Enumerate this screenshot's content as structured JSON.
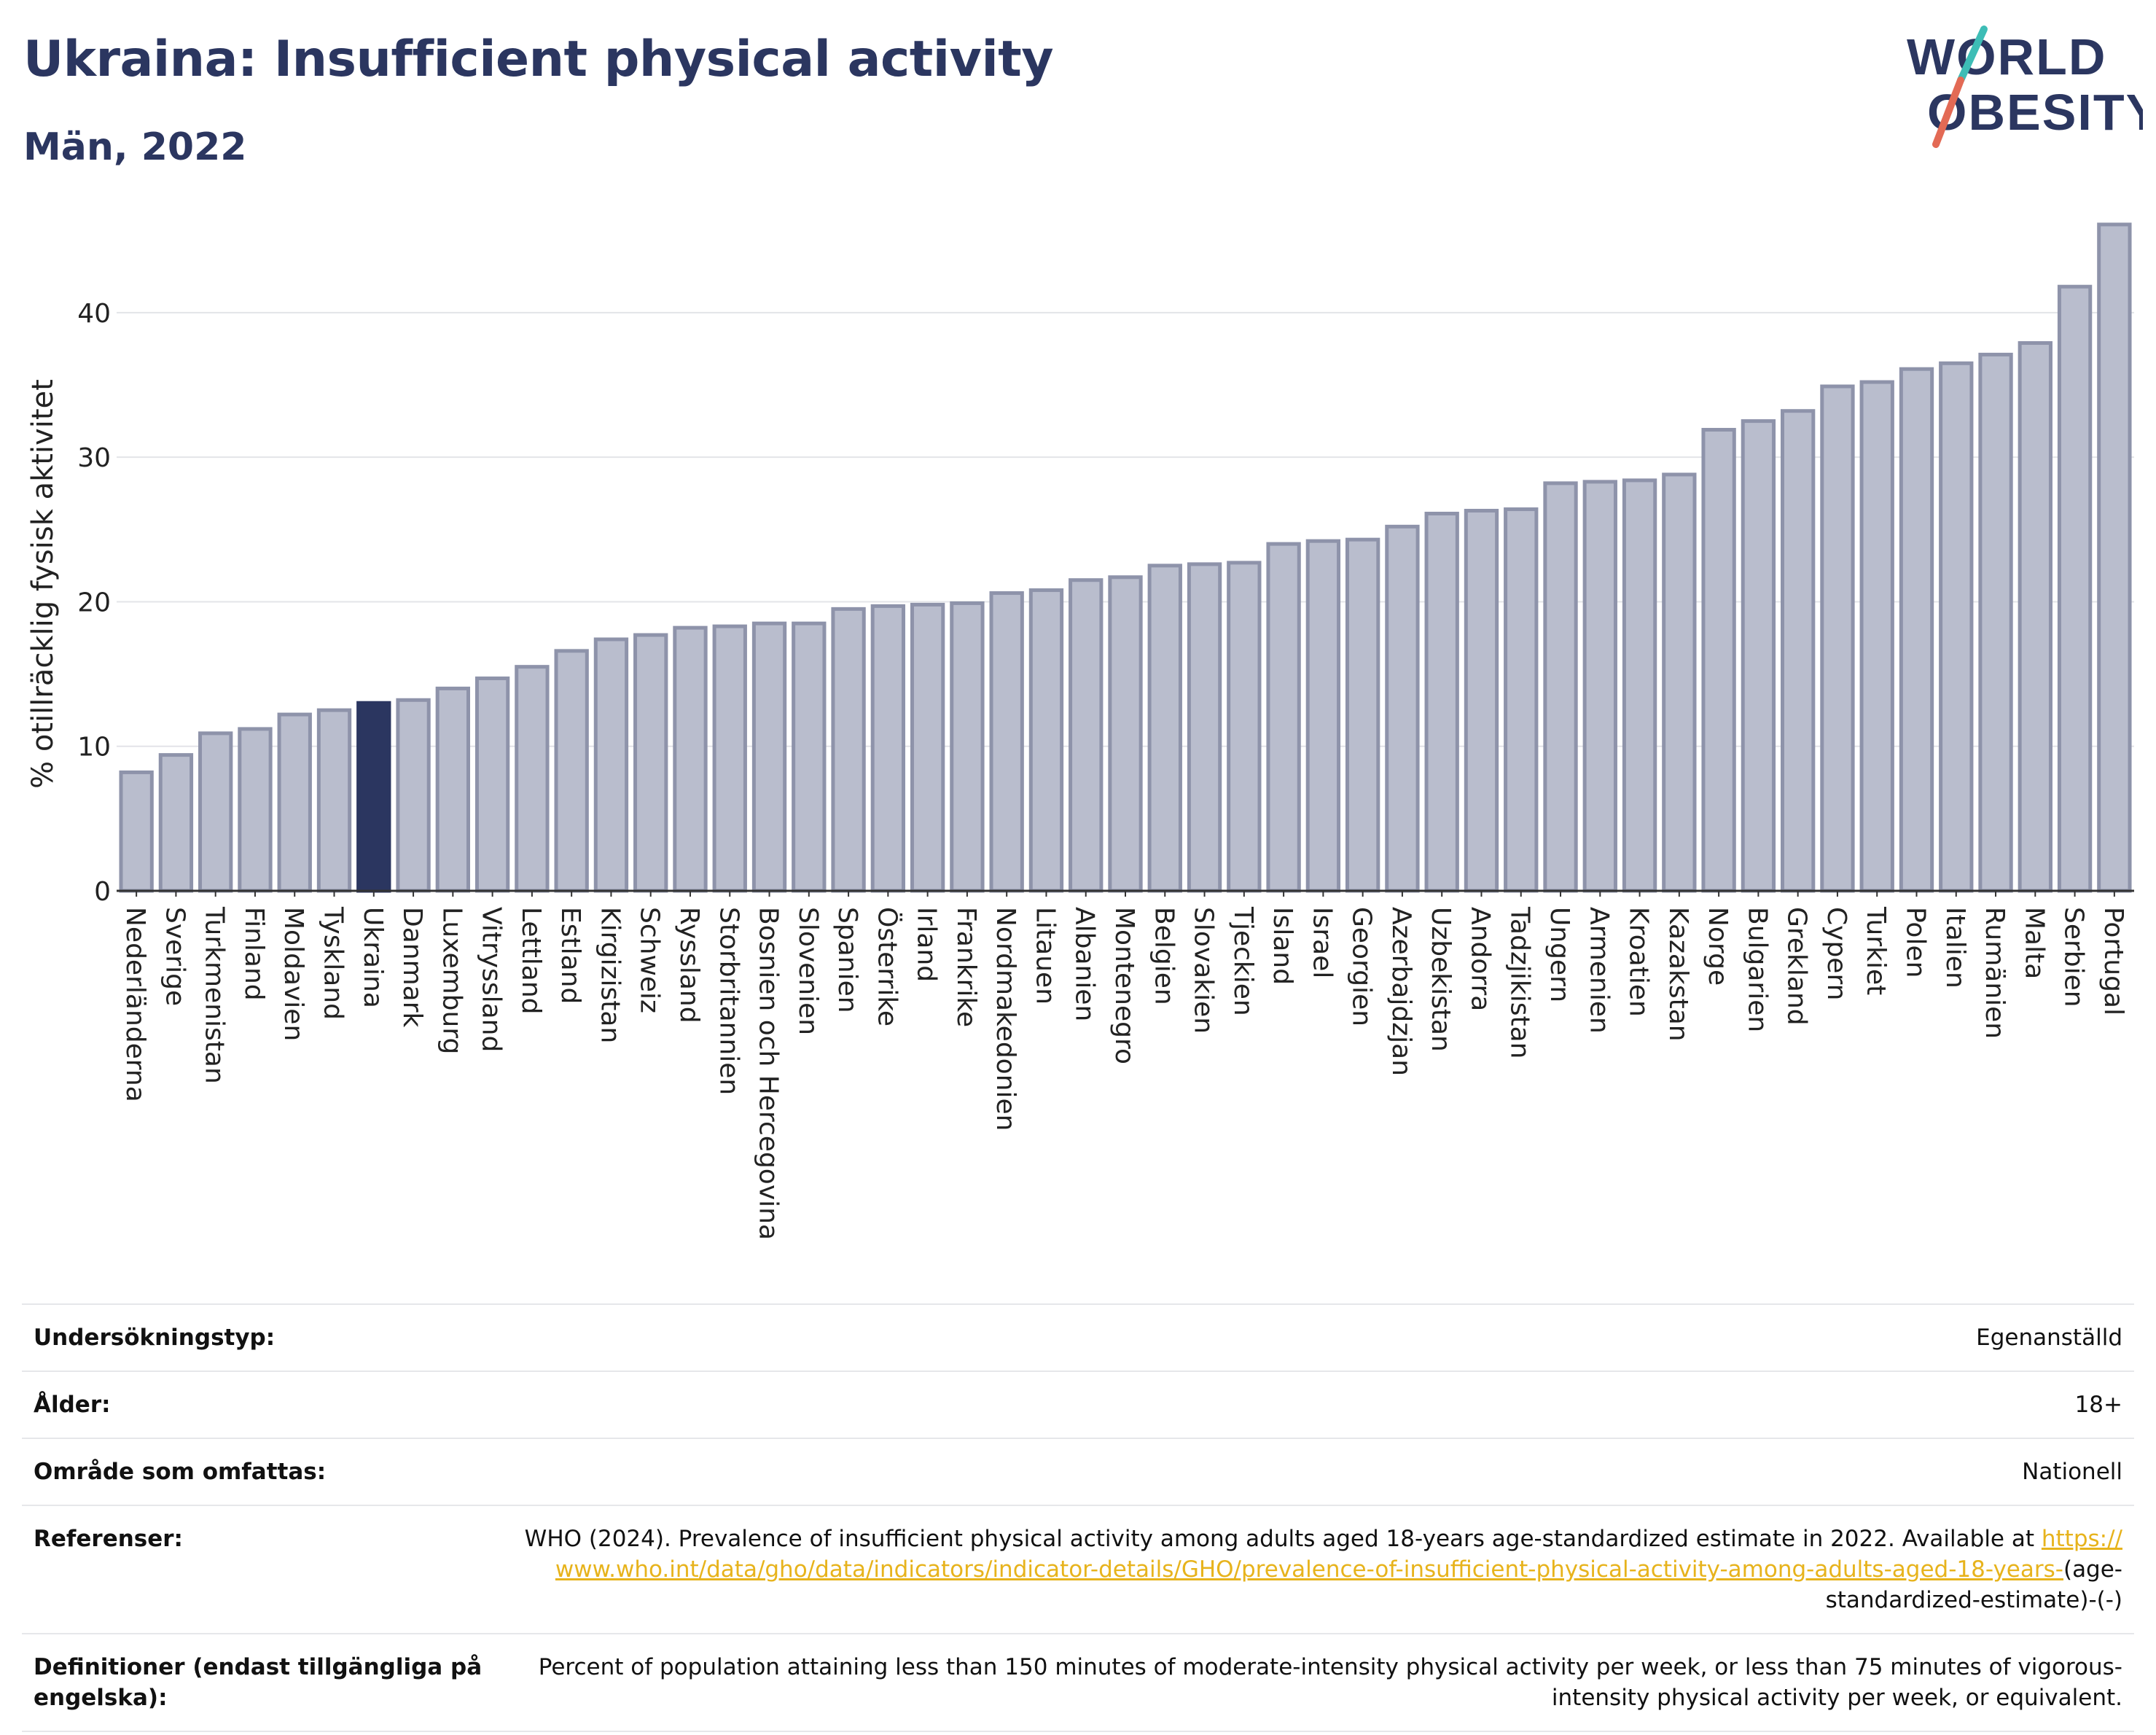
{
  "header": {
    "title": "Ukraina: Insufficient physical activity",
    "subtitle": "Män, 2022"
  },
  "logo": {
    "line1": "WORLD",
    "line2": "OBESITY",
    "accent_colors": [
      "#e36a55",
      "#3dbdb6"
    ],
    "text_color": "#2b3660"
  },
  "chart_data": {
    "type": "bar",
    "ylabel": "% otillräcklig fysisk aktivitet",
    "ylim": [
      0,
      46.5
    ],
    "yticks": [
      0,
      10,
      20,
      30,
      40
    ],
    "grid": true,
    "highlight_category": "Ukraina",
    "colors": {
      "bar": "#b9bdcd",
      "bar_edge": "#8e93aa",
      "highlight": "#2b3660"
    },
    "categories": [
      "Nederländerna",
      "Sverige",
      "Turkmenistan",
      "Finland",
      "Moldavien",
      "Tyskland",
      "Ukraina",
      "Danmark",
      "Luxemburg",
      "Vitryssland",
      "Lettland",
      "Estland",
      "Kirgizistan",
      "Schweiz",
      "Ryssland",
      "Storbritannien",
      "Bosnien och Hercegovina",
      "Slovenien",
      "Spanien",
      "Österrike",
      "Irland",
      "Frankrike",
      "Nordmakedonien",
      "Litauen",
      "Albanien",
      "Montenegro",
      "Belgien",
      "Slovakien",
      "Tjeckien",
      "Island",
      "Israel",
      "Georgien",
      "Azerbajdzjan",
      "Uzbekistan",
      "Andorra",
      "Tadzjikistan",
      "Ungern",
      "Armenien",
      "Kroatien",
      "Kazakstan",
      "Norge",
      "Bulgarien",
      "Grekland",
      "Cypern",
      "Turkiet",
      "Polen",
      "Italien",
      "Rumänien",
      "Malta",
      "Serbien",
      "Portugal"
    ],
    "values": [
      8.2,
      9.4,
      10.9,
      11.2,
      12.2,
      12.5,
      13.0,
      13.2,
      14.0,
      14.7,
      15.5,
      16.6,
      17.4,
      17.7,
      18.2,
      18.3,
      18.5,
      18.5,
      19.5,
      19.7,
      19.8,
      19.9,
      20.6,
      20.8,
      21.5,
      21.7,
      22.5,
      22.6,
      22.7,
      24.0,
      24.2,
      24.3,
      25.2,
      26.1,
      26.3,
      26.4,
      28.2,
      28.3,
      28.4,
      28.8,
      31.9,
      32.5,
      33.2,
      34.9,
      35.2,
      36.1,
      36.5,
      37.1,
      37.9,
      41.8,
      46.1
    ]
  },
  "meta_table": {
    "rows": [
      {
        "key": "Undersökningstyp:",
        "value": "Egenanställd"
      },
      {
        "key": "Ålder:",
        "value": "18+"
      },
      {
        "key": "Område som omfattas:",
        "value": "Nationell"
      },
      {
        "key": "Referenser:",
        "value_pre": "WHO (2024). Prevalence of insufficient physical activity among adults aged 18-years age-standardized estimate in 2022. Available at ",
        "link": "https://www.who.int/data/gho/data/indicators/indicator-details/GHO/prevalence-of-insufficient-physical-activity-among-adults-aged-18-years-",
        "value_post": "(age-standardized-estimate)-(-)"
      },
      {
        "key": "Definitioner (endast tillgängliga på engelska):",
        "value": "Percent of population attaining less than 150 minutes of moderate-intensity physical activity per week, or less than 75 minutes of vigorous-intensity physical activity per week, or equivalent."
      }
    ]
  }
}
